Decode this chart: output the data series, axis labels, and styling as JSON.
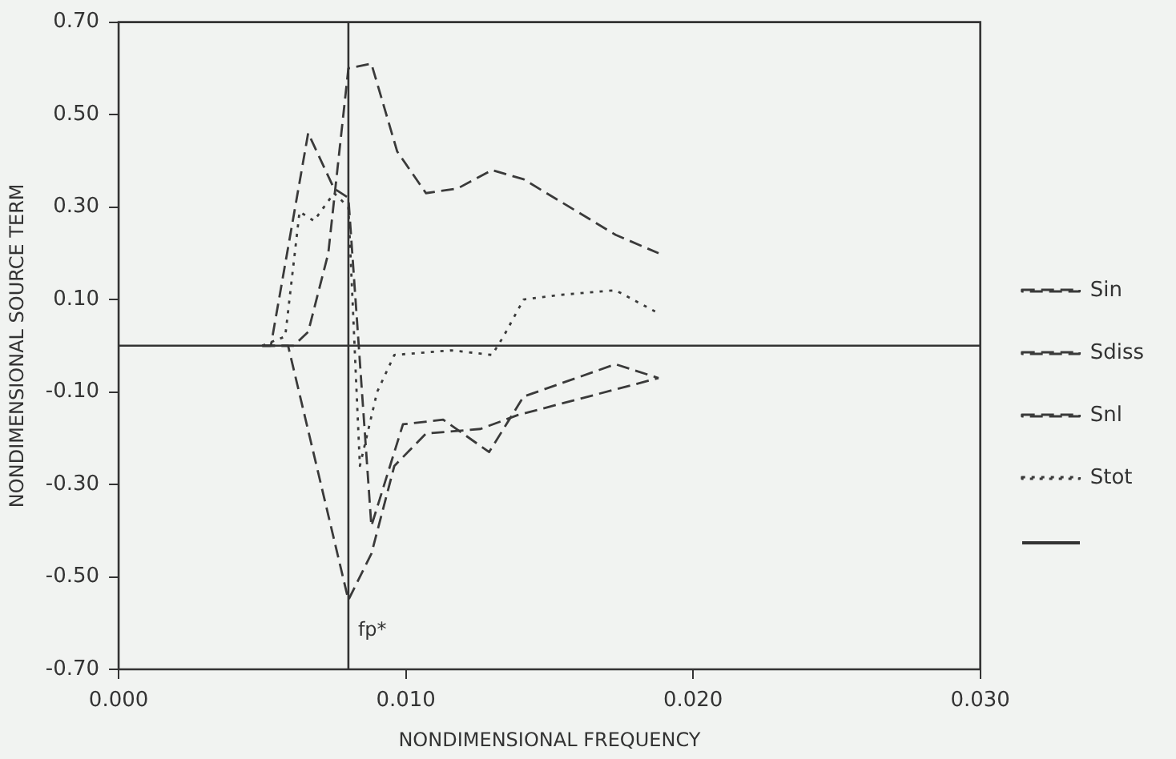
{
  "chart_data": {
    "type": "line",
    "xlabel": "NONDIMENSIONAL FREQUENCY",
    "ylabel": "NONDIMENSIONAL SOURCE TERM",
    "xlim": [
      0,
      0.03
    ],
    "xticks": [
      {
        "value": 0,
        "label": "0.000"
      },
      {
        "value": 0.01,
        "label": "0.010"
      },
      {
        "value": 0.02,
        "label": "0.020"
      },
      {
        "value": 0.03,
        "label": "0.030"
      }
    ],
    "ylim": [
      -0.7,
      0.7
    ],
    "yticks": [
      {
        "value": -0.7,
        "label": "-0.70"
      },
      {
        "value": -0.5,
        "label": "-0.50"
      },
      {
        "value": -0.3,
        "label": "-0.30"
      },
      {
        "value": -0.1,
        "label": "-0.10"
      },
      {
        "value": 0.1,
        "label": "0.10"
      },
      {
        "value": 0.3,
        "label": "0.30"
      },
      {
        "value": 0.5,
        "label": "0.50"
      },
      {
        "value": 0.7,
        "label": "0.70"
      }
    ],
    "grid": false,
    "legend": "right",
    "marker": "none",
    "ref_lines": [
      {
        "axis": "x",
        "value": 0.008,
        "label": "fp*",
        "color": "#333333",
        "line_style": "solid"
      },
      {
        "axis": "y",
        "value": 0,
        "color": "#333333",
        "line_style": "solid"
      }
    ],
    "series": [
      {
        "name": "Sin",
        "color": "#3a3a3a",
        "line_style": "dashed",
        "x": [
          0.005,
          0.0061,
          0.0066,
          0.0073,
          0.008,
          0.0088,
          0.0097,
          0.0107,
          0.0118,
          0.013,
          0.0141,
          0.0173,
          0.0188
        ],
        "values": [
          0,
          0,
          0.03,
          0.2,
          0.6,
          0.61,
          0.42,
          0.33,
          0.34,
          0.38,
          0.36,
          0.24,
          0.2
        ]
      },
      {
        "name": "Sdiss",
        "color": "#3a3a3a",
        "line_style": "dashed",
        "x": [
          0.005,
          0.0059,
          0.008,
          0.0088,
          0.0096,
          0.0107,
          0.0126,
          0.0139,
          0.0188
        ],
        "values": [
          0,
          0,
          -0.55,
          -0.45,
          -0.26,
          -0.19,
          -0.18,
          -0.15,
          -0.07
        ]
      },
      {
        "name": "Snl",
        "color": "#3a3a3a",
        "line_style": "dashed",
        "x": [
          0.005,
          0.0053,
          0.0066,
          0.0075,
          0.008,
          0.0088,
          0.0099,
          0.0113,
          0.0129,
          0.0141,
          0.0173,
          0.0188
        ],
        "values": [
          0,
          0,
          0.46,
          0.34,
          0.32,
          -0.39,
          -0.17,
          -0.16,
          -0.23,
          -0.11,
          -0.04,
          -0.07
        ]
      },
      {
        "name": "Stot",
        "color": "#3a3a3a",
        "line_style": "dotted",
        "x": [
          0.005,
          0.0058,
          0.0063,
          0.0068,
          0.0075,
          0.008,
          0.0084,
          0.009,
          0.0096,
          0.0116,
          0.013,
          0.0134,
          0.0141,
          0.0154,
          0.0173,
          0.0188
        ],
        "values": [
          0,
          0.02,
          0.29,
          0.27,
          0.33,
          0.3,
          -0.26,
          -0.1,
          -0.02,
          -0.01,
          -0.02,
          0.02,
          0.1,
          0.11,
          0.12,
          0.07
        ]
      }
    ]
  }
}
